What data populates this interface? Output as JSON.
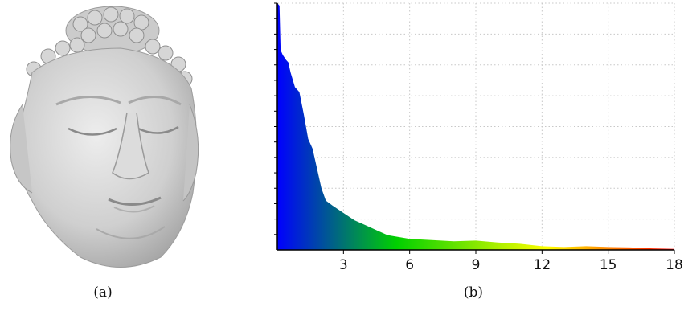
{
  "captions": {
    "a": "(a)",
    "b": "(b)"
  },
  "figure_a": {
    "subject": "3D scanned statue head (gray rendered mesh)",
    "color": "#c9c9c9"
  },
  "chart_data": {
    "type": "area",
    "title": "",
    "xlabel": "",
    "ylabel": "",
    "xlim": [
      0,
      18
    ],
    "ylim": [
      0,
      1
    ],
    "x_ticks": [
      3,
      6,
      9,
      12,
      15,
      18
    ],
    "grid": true,
    "colormap": [
      "#0000ff",
      "#00d000",
      "#ffff00",
      "#ff0000"
    ],
    "x": [
      0.0,
      0.1,
      0.15,
      0.25,
      0.4,
      0.5,
      0.6,
      0.8,
      1.0,
      1.2,
      1.4,
      1.6,
      1.8,
      2.0,
      2.2,
      2.5,
      3.0,
      3.5,
      4.0,
      4.5,
      5.0,
      6.0,
      7.0,
      8.0,
      9.0,
      10.0,
      11.0,
      12.0,
      13.0,
      14.0,
      15.0,
      16.0,
      17.0,
      18.0
    ],
    "values": [
      1.0,
      0.99,
      0.81,
      0.79,
      0.77,
      0.76,
      0.72,
      0.66,
      0.64,
      0.55,
      0.45,
      0.41,
      0.33,
      0.25,
      0.2,
      0.18,
      0.15,
      0.12,
      0.1,
      0.08,
      0.06,
      0.045,
      0.04,
      0.035,
      0.038,
      0.03,
      0.025,
      0.015,
      0.012,
      0.015,
      0.012,
      0.01,
      0.006,
      0.004
    ]
  }
}
